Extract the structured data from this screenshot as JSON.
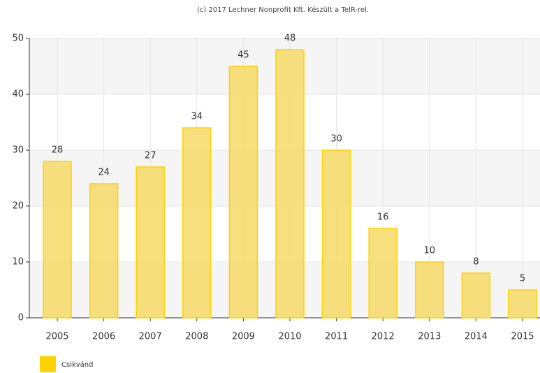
{
  "chart_data": {
    "type": "bar",
    "title": "(c) 2017 Lechner Nonprofit Kft. Készült a TeIR-rel.",
    "categories": [
      "2005",
      "2006",
      "2007",
      "2008",
      "2009",
      "2010",
      "2011",
      "2012",
      "2013",
      "2014",
      "2015"
    ],
    "series": [
      {
        "name": "Csikvánd",
        "color": "#f7dc6f",
        "values": [
          28,
          24,
          27,
          34,
          45,
          48,
          30,
          16,
          10,
          8,
          5
        ]
      }
    ],
    "ylim": [
      0,
      50
    ],
    "yticks": [
      0,
      10,
      20,
      30,
      40,
      50
    ],
    "grid": true,
    "legend": "bottom-left"
  }
}
